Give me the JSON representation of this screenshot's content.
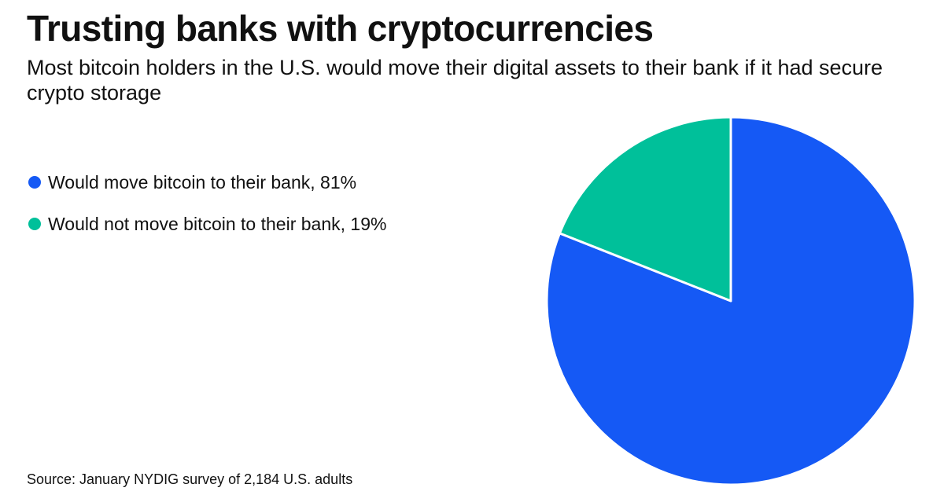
{
  "title": "Trusting banks with cryptocurrencies",
  "subtitle": "Most bitcoin holders in the U.S. would move their digital assets to their bank if it had secure crypto storage",
  "source": "Source: January NYDIG survey of 2,184 U.S. adults",
  "legend": [
    {
      "label": "Would move bitcoin to their bank, 81%",
      "color": "#1559f5"
    },
    {
      "label": "Would not move bitcoin to their bank, 19%",
      "color": "#00c09a"
    }
  ],
  "chart_data": {
    "type": "pie",
    "title": "Trusting banks with cryptocurrencies",
    "subtitle": "Most bitcoin holders in the U.S. would move their digital assets to their bank if it had secure crypto storage",
    "labels": [
      "Would move bitcoin to their bank",
      "Would not move bitcoin to their bank"
    ],
    "values": [
      81,
      19
    ],
    "unit": "%",
    "colors": [
      "#1559f5",
      "#00c09a"
    ],
    "start_position": "12 o'clock",
    "direction": "clockwise",
    "legend_position": "left",
    "source": "Source: January NYDIG survey of 2,184 U.S. adults"
  }
}
